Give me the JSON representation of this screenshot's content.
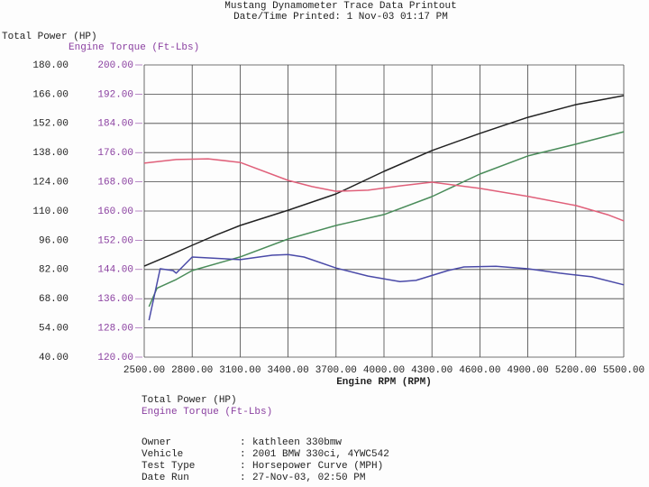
{
  "chart_data": {
    "type": "line",
    "title": "Mustang Dynamometer Trace Data Printout",
    "subtitle": "Date/Time Printed: 1 Nov-03 01:17 PM",
    "ylabel": "Total Power (HP)",
    "y2label": "Engine Torque (Ft-Lbs)",
    "xlabel": "Engine RPM (RPM)",
    "grid": true,
    "xlim": [
      2500,
      5500
    ],
    "xticks": [
      {
        "value": 2500,
        "label": "2500.00"
      },
      {
        "value": 2800,
        "label": "2800.00"
      },
      {
        "value": 3100,
        "label": "3100.00"
      },
      {
        "value": 3400,
        "label": "3400.00"
      },
      {
        "value": 3700,
        "label": "3700.00"
      },
      {
        "value": 4000,
        "label": "4000.00"
      },
      {
        "value": 4300,
        "label": "4300.00"
      },
      {
        "value": 4600,
        "label": "4600.00"
      },
      {
        "value": 4900,
        "label": "4900.00"
      },
      {
        "value": 5200,
        "label": "5200.00"
      },
      {
        "value": 5500,
        "label": "5500.00"
      }
    ],
    "ylim": [
      40,
      180
    ],
    "yticks": [
      {
        "value": 40,
        "label": "40.00"
      },
      {
        "value": 54,
        "label": "54.00"
      },
      {
        "value": 68,
        "label": "68.00"
      },
      {
        "value": 82,
        "label": "82.00"
      },
      {
        "value": 96,
        "label": "96.00"
      },
      {
        "value": 110,
        "label": "110.00"
      },
      {
        "value": 124,
        "label": "124.00"
      },
      {
        "value": 138,
        "label": "138.00"
      },
      {
        "value": 152,
        "label": "152.00"
      },
      {
        "value": 166,
        "label": "166.00"
      },
      {
        "value": 180,
        "label": "180.00"
      }
    ],
    "y2lim": [
      120,
      200
    ],
    "y2ticks": [
      {
        "value": 120,
        "label": "120.00"
      },
      {
        "value": 128,
        "label": "128.00"
      },
      {
        "value": 136,
        "label": "136.00"
      },
      {
        "value": 144,
        "label": "144.00"
      },
      {
        "value": 152,
        "label": "152.00"
      },
      {
        "value": 160,
        "label": "160.00"
      },
      {
        "value": 168,
        "label": "168.00"
      },
      {
        "value": 176,
        "label": "176.00"
      },
      {
        "value": 184,
        "label": "184.00"
      },
      {
        "value": 192,
        "label": "192.00"
      },
      {
        "value": 200,
        "label": "200.00"
      }
    ],
    "y2color": "#8a3fa0",
    "series": [
      {
        "name": "Total Power (HP)",
        "color": "#222222",
        "axis": "y",
        "x": [
          2500,
          2650,
          2800,
          2950,
          3100,
          3400,
          3700,
          4000,
          4300,
          4600,
          4900,
          5200,
          5500
        ],
        "values": [
          83.6,
          88.5,
          93.6,
          98.5,
          103.1,
          110.4,
          118.2,
          129.0,
          139.0,
          147.2,
          154.9,
          161.0,
          165.3
        ]
      },
      {
        "color": "#4a8c5a",
        "axis": "y",
        "x": [
          2530,
          2580,
          2700,
          2800,
          3100,
          3400,
          3700,
          4000,
          4300,
          4600,
          4900,
          5200,
          5500
        ],
        "values": [
          64.2,
          73.0,
          77.2,
          81.5,
          88.0,
          96.6,
          103.1,
          108.3,
          116.9,
          127.7,
          136.4,
          142.0,
          148.0
        ]
      },
      {
        "name": "Engine Torque (Ft-Lbs)",
        "color": "#e0607a",
        "axis": "y2",
        "x": [
          2500,
          2700,
          2900,
          3100,
          3400,
          3550,
          3700,
          3900,
          4100,
          4300,
          4600,
          4900,
          5200,
          5400,
          5500
        ],
        "values": [
          173.1,
          174.1,
          174.3,
          173.3,
          168.4,
          166.7,
          165.4,
          165.7,
          166.9,
          167.9,
          166.2,
          164.0,
          161.5,
          159.0,
          157.3
        ]
      },
      {
        "color": "#4a4aa8",
        "axis": "y2",
        "x": [
          2530,
          2600,
          2680,
          2700,
          2800,
          3100,
          3300,
          3400,
          3500,
          3700,
          3900,
          4100,
          4200,
          4400,
          4500,
          4700,
          4900,
          5100,
          5300,
          5500
        ],
        "values": [
          130.1,
          144.2,
          143.7,
          143.0,
          147.4,
          146.7,
          147.9,
          148.1,
          147.4,
          144.4,
          142.2,
          140.7,
          141.0,
          143.7,
          144.7,
          144.9,
          144.2,
          143.0,
          142.0,
          139.8
        ]
      }
    ],
    "info": [
      {
        "label": "Owner",
        "value": "kathleen 330bmw"
      },
      {
        "label": "Vehicle",
        "value": "2001 BMW 330ci, 4YWC542"
      },
      {
        "label": "Test Type",
        "value": "Horsepower Curve (MPH)"
      },
      {
        "label": "Date Run",
        "value": "27-Nov-03, 02:50 PM"
      }
    ]
  }
}
